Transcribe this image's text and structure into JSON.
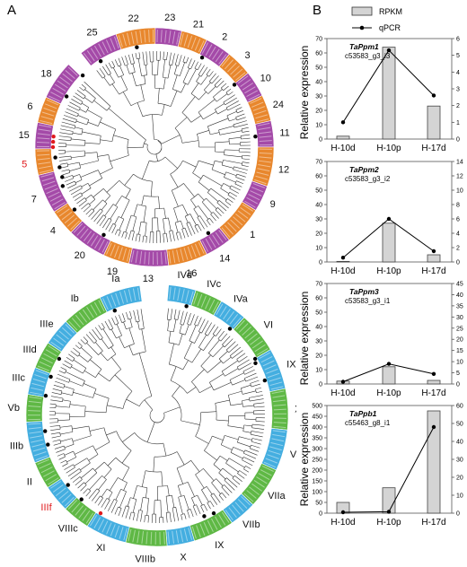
{
  "panel_labels": {
    "a": "A",
    "b": "B"
  },
  "colors": {
    "purple": "#a44aa8",
    "orange": "#e8872d",
    "green": "#5fb845",
    "blue": "#44aee0",
    "highlight_red": "#e0191c",
    "bar_fill": "#d4d4d4",
    "line": "#000000"
  },
  "tree_top": {
    "clade_labels": [
      "25",
      "22",
      "23",
      "21",
      "2",
      "3",
      "10",
      "24",
      "11",
      "12",
      "9",
      "1",
      "14",
      "16",
      "13",
      "19",
      "20",
      "4",
      "7",
      "5",
      "15",
      "6",
      "18"
    ],
    "highlighted_label": "5"
  },
  "tree_bottom": {
    "clade_labels": [
      "IVd",
      "IVc",
      "IVa",
      "VI",
      "IX",
      "XII",
      "Va",
      "VIIa",
      "VIIb",
      "IX",
      "X",
      "VIIIb",
      "XI",
      "VIIIc",
      "IIIf",
      "II",
      "IIIb",
      "Vb",
      "IIIc",
      "IIId",
      "IIIe",
      "Ib",
      "Ia"
    ],
    "highlighted_label": "IIIf"
  },
  "legend": {
    "rpkm": "RPKM",
    "qpcr": "qPCR"
  },
  "y_axis_title": "Relative expression",
  "chart_data": [
    {
      "type": "bar",
      "gene": "TaPpm1",
      "transcript": "c53583_g3_i3",
      "categories": [
        "H-10d",
        "H-10p",
        "H-17d"
      ],
      "series": [
        {
          "name": "RPKM",
          "values": [
            2,
            64,
            23
          ]
        },
        {
          "name": "qPCR",
          "values": [
            1.0,
            5.3,
            2.6
          ]
        }
      ],
      "ylim_left": [
        0,
        70
      ],
      "yticks_left": [
        0,
        10,
        20,
        30,
        40,
        50,
        60,
        70
      ],
      "ylim_right": [
        0,
        6
      ],
      "yticks_right": [
        0,
        1,
        2,
        3,
        4,
        5,
        6
      ]
    },
    {
      "type": "bar",
      "gene": "TaPpm2",
      "transcript": "c53583_g3_i2",
      "categories": [
        "H-10d",
        "H-10p",
        "H-17d"
      ],
      "series": [
        {
          "name": "RPKM",
          "values": [
            0.4,
            27,
            5
          ]
        },
        {
          "name": "qPCR",
          "values": [
            0.6,
            6.0,
            1.5
          ]
        }
      ],
      "ylim_left": [
        0,
        70
      ],
      "yticks_left": [
        0,
        10,
        20,
        30,
        40,
        50,
        60,
        70
      ],
      "ylim_right": [
        0,
        14
      ],
      "yticks_right": [
        0,
        2,
        4,
        6,
        8,
        10,
        12,
        14
      ]
    },
    {
      "type": "bar",
      "gene": "TaPpm3",
      "transcript": "c53583_g3_i1",
      "categories": [
        "H-10d",
        "H-10p",
        "H-17d"
      ],
      "series": [
        {
          "name": "RPKM",
          "values": [
            2,
            12,
            2.5
          ]
        },
        {
          "name": "qPCR",
          "values": [
            1.0,
            9.0,
            4.5
          ]
        }
      ],
      "ylim_left": [
        0,
        70
      ],
      "yticks_left": [
        0,
        10,
        20,
        30,
        40,
        50,
        60,
        70
      ],
      "ylim_right": [
        0,
        45
      ],
      "yticks_right": [
        0,
        5,
        10,
        15,
        20,
        25,
        30,
        35,
        40,
        45
      ]
    },
    {
      "type": "bar",
      "gene": "TaPpb1",
      "transcript": "c55463_g8_i1",
      "categories": [
        "H-10d",
        "H-10p",
        "H-17d"
      ],
      "series": [
        {
          "name": "RPKM",
          "values": [
            50,
            118,
            475
          ]
        },
        {
          "name": "qPCR",
          "values": [
            0.5,
            0.8,
            48
          ]
        }
      ],
      "ylim_left": [
        0,
        500
      ],
      "yticks_left": [
        0,
        50,
        100,
        150,
        200,
        250,
        300,
        350,
        400,
        450,
        500
      ],
      "ylim_right": [
        0,
        60
      ],
      "yticks_right": [
        0,
        10,
        20,
        30,
        40,
        50,
        60
      ]
    }
  ]
}
